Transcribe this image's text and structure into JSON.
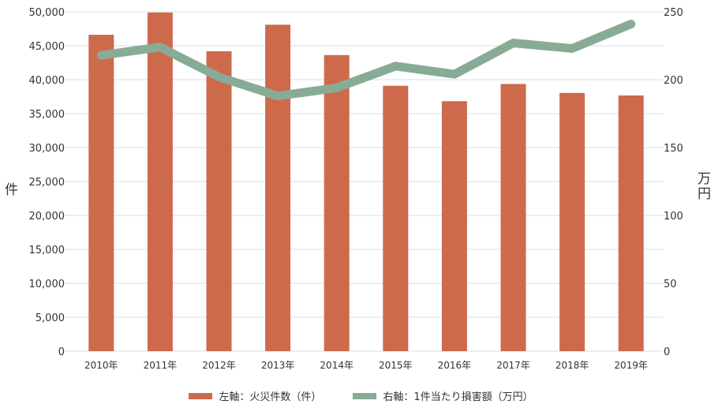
{
  "chart_data": {
    "type": "bar+line",
    "title": "",
    "categories": [
      "2010年",
      "2011年",
      "2012年",
      "2013年",
      "2014年",
      "2015年",
      "2016年",
      "2017年",
      "2018年",
      "2019年"
    ],
    "series": [
      {
        "name": "左軸：火災件数（件）",
        "type": "bar",
        "axis": "left",
        "color": "#cd6a4c",
        "values": [
          46620,
          49900,
          44190,
          48100,
          43630,
          39110,
          36830,
          39370,
          38050,
          37680
        ]
      },
      {
        "name": "右軸：1件当たり損害額（万円）",
        "type": "line",
        "axis": "right",
        "color": "#88ab96",
        "values": [
          218,
          224,
          202,
          188,
          194,
          210,
          204,
          227,
          223,
          241
        ]
      }
    ],
    "left_axis": {
      "label": "件",
      "ylim": [
        0,
        50000
      ],
      "ticks": [
        "0",
        "5,000",
        "10,000",
        "15,000",
        "20,000",
        "25,000",
        "30,000",
        "35,000",
        "40,000",
        "45,000",
        "50,000"
      ]
    },
    "right_axis": {
      "label": "万円",
      "ylim": [
        0,
        250
      ],
      "ticks": [
        "0",
        "50",
        "100",
        "150",
        "200",
        "250"
      ]
    },
    "grid": true,
    "legend_position": "bottom"
  },
  "axis_titles": {
    "left": "件",
    "right_line1": "万",
    "right_line2": "円"
  },
  "legend": [
    {
      "label": "左軸：火災件数（件）",
      "color": "#cd6a4c"
    },
    {
      "label": "右軸：1件当たり損害額（万円）",
      "color": "#88ab96"
    }
  ]
}
